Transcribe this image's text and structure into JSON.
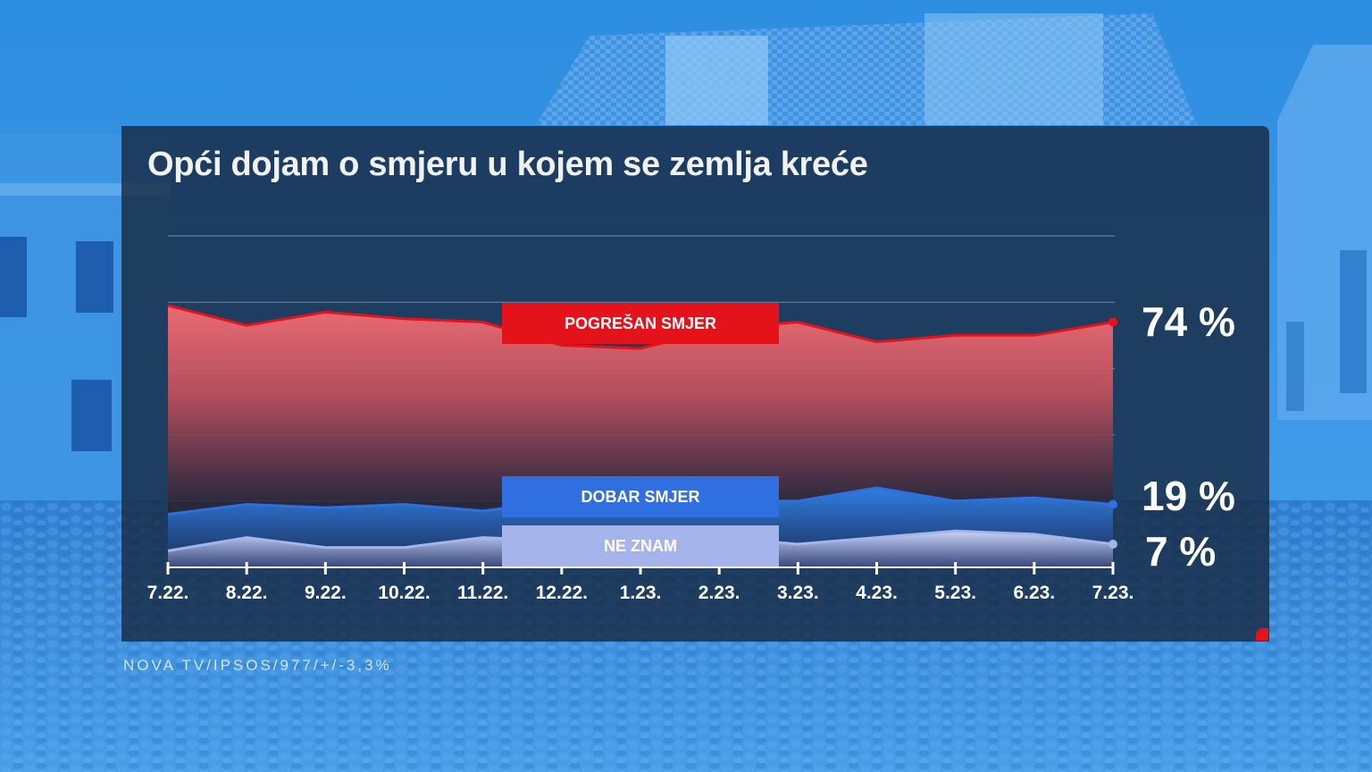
{
  "title": "Opći dojam o smjeru u kojem se zemlja kreće",
  "source": "NOVA TV/IPSOS/977/+/-3,3%",
  "colors": {
    "wrong": "#e3121b",
    "good": "#2f6fe0",
    "dont_know": "#a5b4ea",
    "panel": "#162840"
  },
  "chart_data": {
    "type": "area",
    "x": [
      "7.22.",
      "8.22.",
      "9.22.",
      "10.22.",
      "11.22.",
      "12.22.",
      "1.23.",
      "2.23.",
      "3.23.",
      "4.23.",
      "5.23.",
      "6.23.",
      "7.23."
    ],
    "ylim": [
      0,
      100
    ],
    "grid": true,
    "series": [
      {
        "name": "POGREŠAN SMJER",
        "values": [
          79,
          73,
          77,
          75,
          74,
          67,
          66,
          72,
          74,
          68,
          70,
          70,
          74
        ],
        "end_label": "74 %",
        "color": "#e3121b"
      },
      {
        "name": "DOBAR SMJER",
        "values": [
          16,
          19,
          18,
          19,
          17,
          20,
          20,
          20,
          20,
          24,
          20,
          21,
          19
        ],
        "end_label": "19 %",
        "color": "#2f6fe0"
      },
      {
        "name": "NE ZNAM",
        "values": [
          5,
          9,
          6,
          6,
          9,
          8,
          9,
          9,
          7,
          9,
          11,
          10,
          7
        ],
        "end_label": "7 %",
        "color": "#a5b4ea"
      }
    ]
  }
}
